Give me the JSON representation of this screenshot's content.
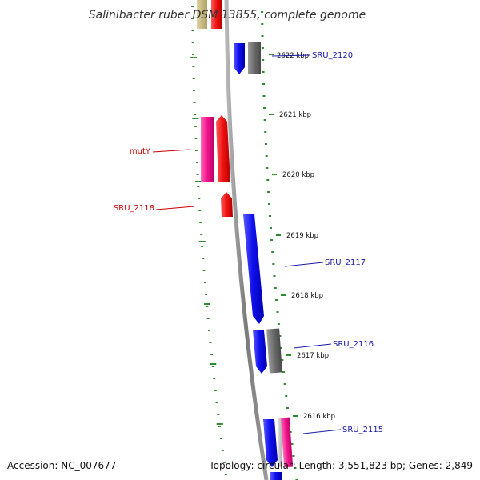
{
  "title": "Salinibacter ruber DSM 13855, complete genome",
  "footer": {
    "accession": "Accession: NC_007677",
    "stats": "Topology: circular; Length: 3,551,823 bp; Genes: 2,849"
  },
  "ticks": [
    "2622 kbp",
    "2621 kbp",
    "2620 kbp",
    "2619 kbp",
    "2618 kbp",
    "2617 kbp",
    "2616 kbp"
  ],
  "gene_labels": {
    "SRU_2120": "SRU_2120",
    "mutY": "mutY",
    "SRU_2118": "SRU_2118",
    "SRU_2117": "SRU_2117",
    "SRU_2116": "SRU_2116",
    "SRU_2115": "SRU_2115"
  },
  "colors": {
    "backbone": "#8a8a8a",
    "minor_tick": "#2e8b2e",
    "label_right": "#1a1aa8",
    "label_left": "#cc0000",
    "cds_blue": "#1414e6",
    "cds_gray": "#6f6f6f",
    "cds_red": "#e81010",
    "cds_pink": "#f0148c",
    "cds_tan": "#c8b67a",
    "cds_lightgray": "#c9c9c9"
  }
}
